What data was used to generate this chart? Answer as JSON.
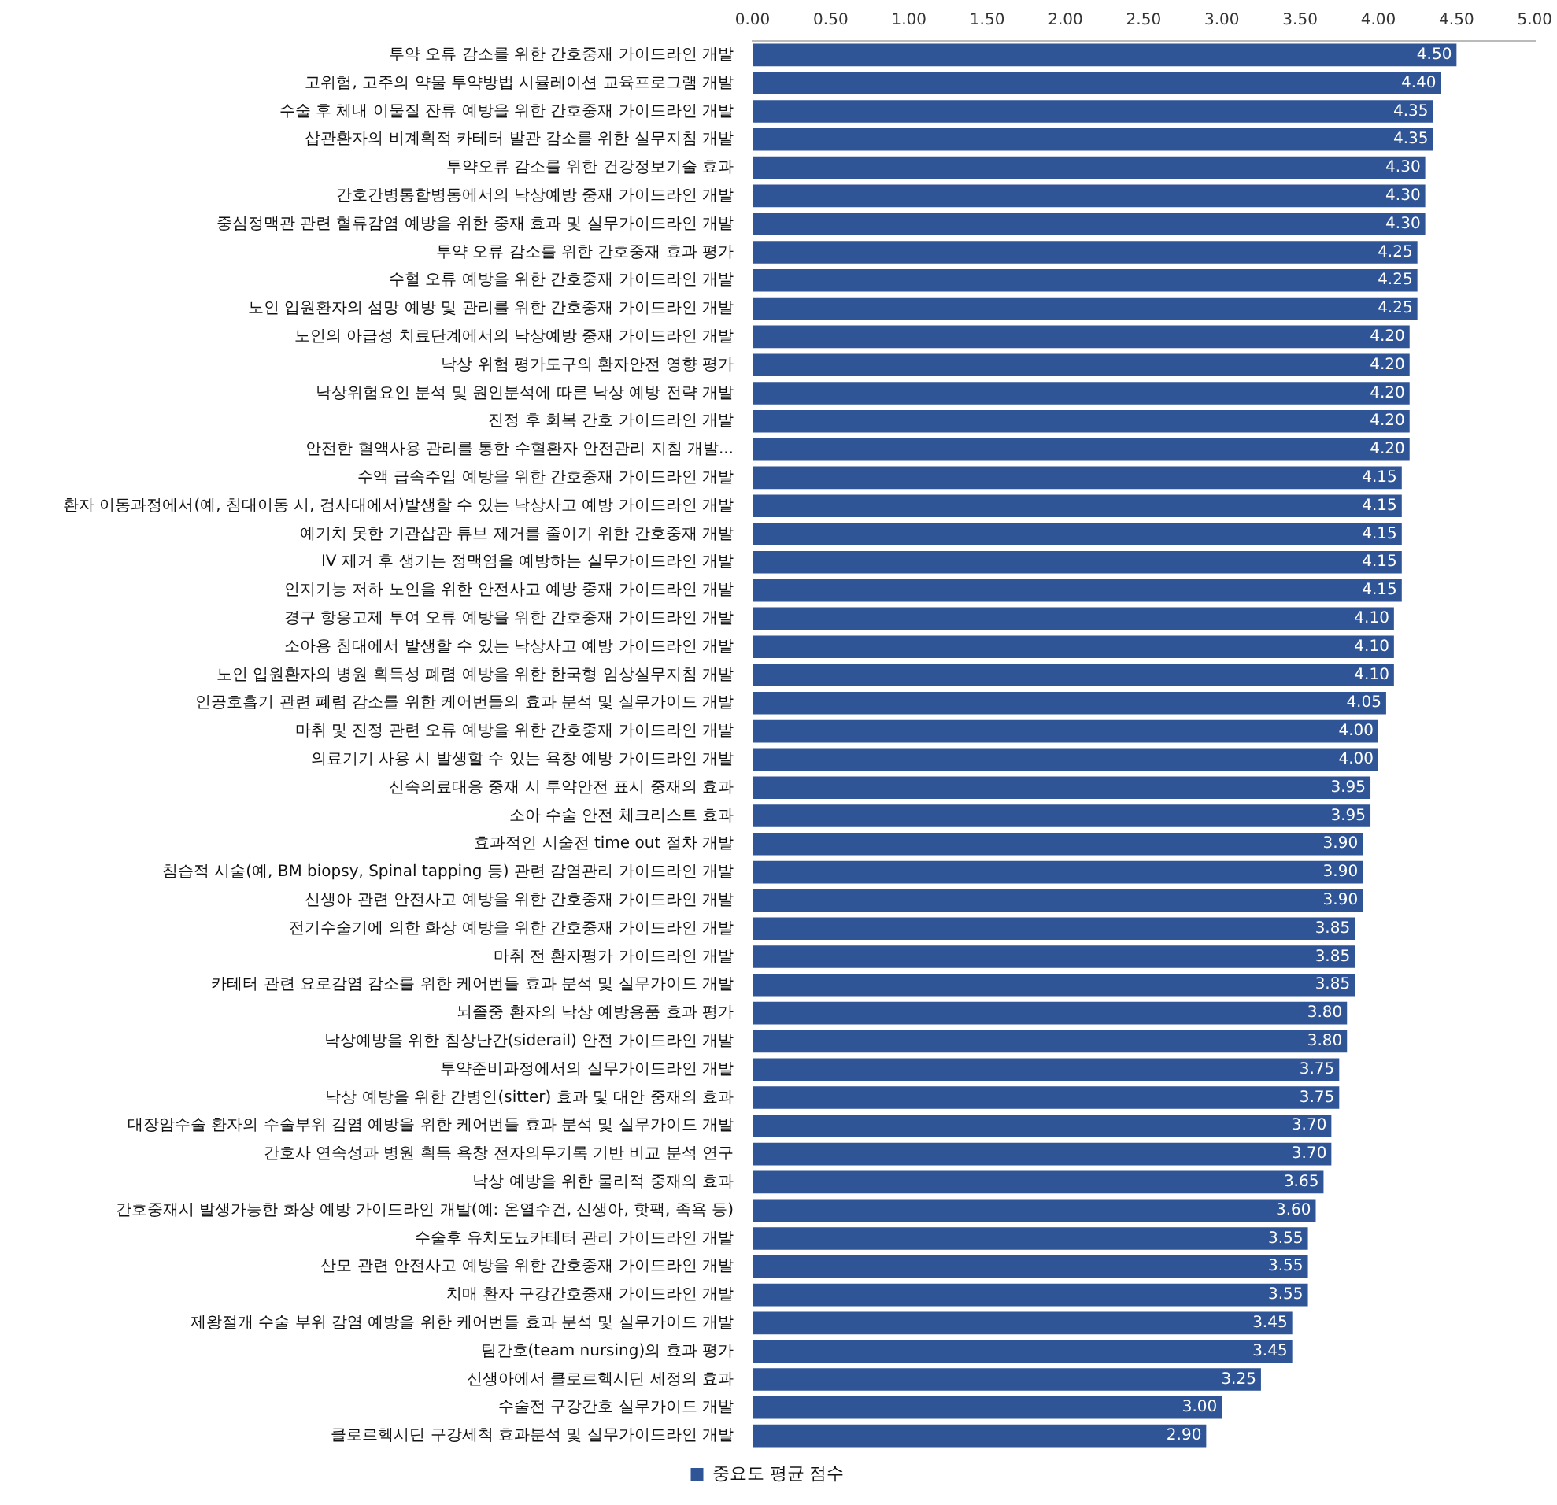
{
  "chart_data": {
    "type": "bar",
    "orientation": "horizontal",
    "categories": [
      "투약 오류 감소를 위한 간호중재 가이드라인 개발",
      "고위험, 고주의 약물 투약방법 시뮬레이션 교육프로그램 개발",
      "수술 후 체내 이물질 잔류 예방을 위한 간호중재 가이드라인 개발",
      "삽관환자의 비계획적 카테터 발관 감소를 위한 실무지침 개발",
      "투약오류 감소를 위한 건강정보기술 효과",
      "간호간병통합병동에서의 낙상예방 중재 가이드라인 개발",
      "중심정맥관 관련 혈류감염 예방을 위한 중재 효과 및 실무가이드라인 개발",
      "투약 오류 감소를 위한 간호중재 효과 평가",
      "수혈 오류 예방을 위한 간호중재 가이드라인 개발",
      "노인 입원환자의 섬망 예방 및 관리를 위한 간호중재 가이드라인 개발",
      "노인의 아급성 치료단계에서의 낙상예방 중재 가이드라인 개발",
      "낙상 위험 평가도구의 환자안전 영향 평가",
      "낙상위험요인 분석 및 원인분석에 따른 낙상 예방 전략 개발",
      "진정 후 회복 간호 가이드라인 개발",
      "안전한 혈액사용 관리를 통한 수혈환자 안전관리 지침 개발...",
      "수액 급속주입 예방을 위한 간호중재 가이드라인 개발",
      "환자 이동과정에서(예, 침대이동 시, 검사대에서)발생할 수 있는 낙상사고 예방 가이드라인 개발",
      "예기치 못한 기관삽관 튜브 제거를 줄이기 위한 간호중재 개발",
      "IV 제거 후 생기는 정맥염을 예방하는 실무가이드라인 개발",
      "인지기능 저하 노인을 위한 안전사고 예방 중재 가이드라인 개발",
      "경구 항응고제 투여 오류 예방을 위한 간호중재 가이드라인 개발",
      "소아용 침대에서 발생할 수 있는 낙상사고 예방 가이드라인 개발",
      "노인 입원환자의 병원 획득성 폐렴 예방을 위한 한국형 임상실무지침 개발",
      "인공호흡기 관련 폐렴 감소를 위한 케어번들의 효과 분석 및 실무가이드 개발",
      "마취 및 진정 관련 오류 예방을 위한 간호중재 가이드라인 개발",
      "의료기기 사용 시 발생할 수 있는 욕창 예방 가이드라인 개발",
      "신속의료대응 중재 시 투약안전 표시 중재의 효과",
      "소아 수술 안전 체크리스트 효과",
      "효과적인 시술전 time out 절차 개발",
      "침습적 시술(예, BM biopsy, Spinal tapping 등) 관련 감염관리 가이드라인 개발",
      "신생아 관련 안전사고 예방을 위한 간호중재 가이드라인 개발",
      "전기수술기에 의한 화상 예방을 위한 간호중재 가이드라인 개발",
      "마취 전 환자평가 가이드라인 개발",
      "카테터 관련 요로감염 감소를 위한 케어번들 효과 분석 및 실무가이드 개발",
      "뇌졸중 환자의 낙상 예방용품 효과 평가",
      "낙상예방을 위한 침상난간(siderail) 안전 가이드라인 개발",
      "투약준비과정에서의 실무가이드라인 개발",
      "낙상 예방을 위한 간병인(sitter) 효과 및 대안 중재의 효과",
      "대장암수술 환자의 수술부위 감염 예방을 위한 케어번들 효과 분석 및 실무가이드 개발",
      "간호사 연속성과 병원 획득 욕창 전자의무기록 기반 비교 분석 연구",
      "낙상 예방을 위한 물리적 중재의 효과",
      "간호중재시 발생가능한 화상 예방 가이드라인 개발(예: 온열수건, 신생아, 핫팩, 족욕 등)",
      "수술후 유치도뇨카테터 관리 가이드라인 개발",
      "산모 관련 안전사고 예방을 위한 간호중재 가이드라인 개발",
      "치매 환자 구강간호중재 가이드라인 개발",
      "제왕절개 수술 부위 감염 예방을 위한 케어번들 효과 분석 및 실무가이드 개발",
      "팀간호(team nursing)의 효과 평가",
      "신생아에서 클로르헥시딘 세정의 효과",
      "수술전 구강간호 실무가이드 개발",
      "클로르헥시딘 구강세척 효과분석 및 실무가이드라인 개발"
    ],
    "series": [
      {
        "name": "중요도 평균 점수",
        "color": "#2f5597",
        "values": [
          4.5,
          4.4,
          4.35,
          4.35,
          4.3,
          4.3,
          4.3,
          4.25,
          4.25,
          4.25,
          4.2,
          4.2,
          4.2,
          4.2,
          4.2,
          4.15,
          4.15,
          4.15,
          4.15,
          4.15,
          4.1,
          4.1,
          4.1,
          4.05,
          4,
          4,
          3.95,
          3.95,
          3.9,
          3.9,
          3.9,
          3.85,
          3.85,
          3.85,
          3.8,
          3.8,
          3.75,
          3.75,
          3.7,
          3.7,
          3.65,
          3.6,
          3.55,
          3.55,
          3.55,
          3.45,
          3.45,
          3.25,
          3,
          2.9
        ],
        "value_labels": [
          "4.50",
          "4.40",
          "4.35",
          "4.35",
          "4.30",
          "4.30",
          "4.30",
          "4.25",
          "4.25",
          "4.25",
          "4.20",
          "4.20",
          "4.20",
          "4.20",
          "4.20",
          "4.15",
          "4.15",
          "4.15",
          "4.15",
          "4.15",
          "4.10",
          "4.10",
          "4.10",
          "4.05",
          "4.00",
          "4.00",
          "3.95",
          "3.95",
          "3.90",
          "3.90",
          "3.90",
          "3.85",
          "3.85",
          "3.85",
          "3.80",
          "3.80",
          "3.75",
          "3.75",
          "3.70",
          "3.70",
          "3.65",
          "3.60",
          "3.55",
          "3.55",
          "3.55",
          "3.45",
          "3.45",
          "3.25",
          "3.00",
          "2.90"
        ]
      }
    ],
    "xlim": [
      0,
      5
    ],
    "xticks": [
      {
        "value": 0,
        "label": "0.00"
      },
      {
        "value": 0.5,
        "label": "0.50"
      },
      {
        "value": 1,
        "label": "1.00"
      },
      {
        "value": 1.5,
        "label": "1.50"
      },
      {
        "value": 2,
        "label": "2.00"
      },
      {
        "value": 2.5,
        "label": "2.50"
      },
      {
        "value": 3,
        "label": "3.00"
      },
      {
        "value": 3.5,
        "label": "3.50"
      },
      {
        "value": 4,
        "label": "4.00"
      },
      {
        "value": 4.5,
        "label": "4.50"
      },
      {
        "value": 5,
        "label": "5.00"
      }
    ],
    "legend": "bottom"
  }
}
